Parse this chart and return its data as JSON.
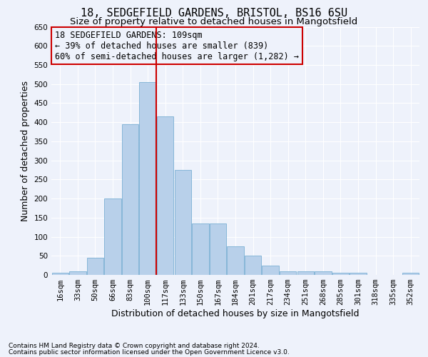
{
  "title1": "18, SEDGEFIELD GARDENS, BRISTOL, BS16 6SU",
  "title2": "Size of property relative to detached houses in Mangotsfield",
  "xlabel": "Distribution of detached houses by size in Mangotsfield",
  "ylabel": "Number of detached properties",
  "footnote1": "Contains HM Land Registry data © Crown copyright and database right 2024.",
  "footnote2": "Contains public sector information licensed under the Open Government Licence v3.0.",
  "annotation_line1": "18 SEDGEFIELD GARDENS: 109sqm",
  "annotation_line2": "← 39% of detached houses are smaller (839)",
  "annotation_line3": "60% of semi-detached houses are larger (1,282) →",
  "bar_labels": [
    "16sqm",
    "33sqm",
    "50sqm",
    "66sqm",
    "83sqm",
    "100sqm",
    "117sqm",
    "133sqm",
    "150sqm",
    "167sqm",
    "184sqm",
    "201sqm",
    "217sqm",
    "234sqm",
    "251sqm",
    "268sqm",
    "285sqm",
    "301sqm",
    "318sqm",
    "335sqm",
    "352sqm"
  ],
  "bar_heights": [
    5,
    10,
    45,
    200,
    395,
    505,
    415,
    275,
    135,
    135,
    75,
    50,
    25,
    10,
    10,
    10,
    5,
    5,
    0,
    0,
    5
  ],
  "bar_color": "#b8d0ea",
  "bar_edge_color": "#7aafd4",
  "vline_x": 5.5,
  "vline_color": "#cc0000",
  "annotation_box_color": "#cc0000",
  "ylim": [
    0,
    650
  ],
  "yticks": [
    0,
    50,
    100,
    150,
    200,
    250,
    300,
    350,
    400,
    450,
    500,
    550,
    600,
    650
  ],
  "bg_color": "#eef2fb",
  "grid_color": "#ffffff",
  "title1_fontsize": 11,
  "title2_fontsize": 9.5,
  "annotation_fontsize": 8.5,
  "tick_fontsize": 7.5,
  "label_fontsize": 9,
  "footnote_fontsize": 6.5
}
